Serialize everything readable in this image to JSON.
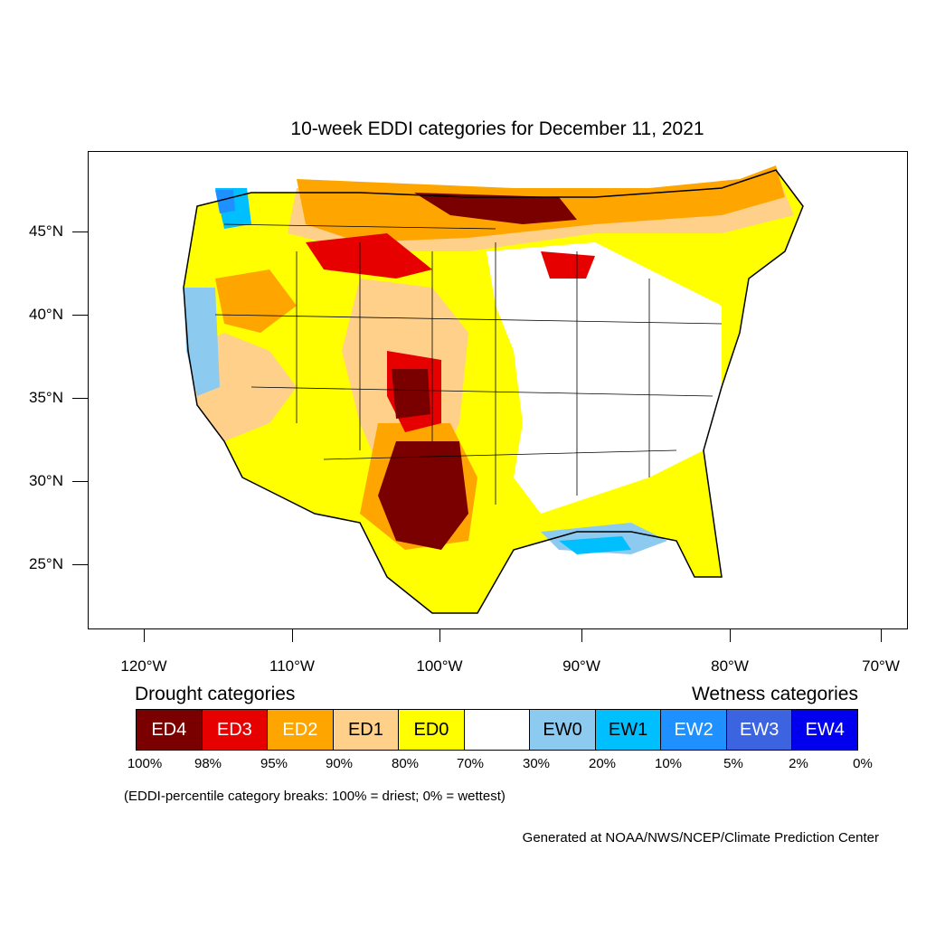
{
  "title": "10-week EDDI categories for December 11, 2021",
  "map": {
    "lat_labels": [
      "45°N",
      "40°N",
      "35°N",
      "30°N",
      "25°N"
    ],
    "lon_labels": [
      "120°W",
      "110°W",
      "100°W",
      "90°W",
      "80°W",
      "70°W"
    ],
    "colors": {
      "ED4": "#7a0000",
      "ED3": "#e60000",
      "ED2": "#ffa500",
      "ED1": "#ffd08a",
      "ED0": "#ffff00",
      "neutral": "#ffffff",
      "EW0": "#8ccbef",
      "EW1": "#00bfff",
      "EW2": "#1e90ff",
      "EW3": "#3c64e0",
      "EW4": "#0000ee"
    }
  },
  "legend": {
    "drought_heading": "Drought categories",
    "wetness_heading": "Wetness categories",
    "categories": [
      {
        "label": "ED4",
        "color": "#7a0000",
        "text_color": "#ffffff"
      },
      {
        "label": "ED3",
        "color": "#e60000",
        "text_color": "#ffffff"
      },
      {
        "label": "ED2",
        "color": "#ffa500",
        "text_color": "#ffffff"
      },
      {
        "label": "ED1",
        "color": "#ffd08a",
        "text_color": "#000000"
      },
      {
        "label": "ED0",
        "color": "#ffff00",
        "text_color": "#000000"
      },
      {
        "label": "",
        "color": "#ffffff",
        "text_color": "#000000"
      },
      {
        "label": "EW0",
        "color": "#8ccbef",
        "text_color": "#000000"
      },
      {
        "label": "EW1",
        "color": "#00bfff",
        "text_color": "#000000"
      },
      {
        "label": "EW2",
        "color": "#1e90ff",
        "text_color": "#ffffff"
      },
      {
        "label": "EW3",
        "color": "#3c64e0",
        "text_color": "#ffffff"
      },
      {
        "label": "EW4",
        "color": "#0000ee",
        "text_color": "#ffffff"
      }
    ],
    "breaks": [
      "100%",
      "98%",
      "95%",
      "90%",
      "80%",
      "70%",
      "30%",
      "20%",
      "10%",
      "5%",
      "2%",
      "0%"
    ]
  },
  "note": "(EDDI-percentile category breaks: 100% = driest; 0% = wettest)",
  "credit": "Generated at NOAA/NWS/NCEP/Climate Prediction Center"
}
